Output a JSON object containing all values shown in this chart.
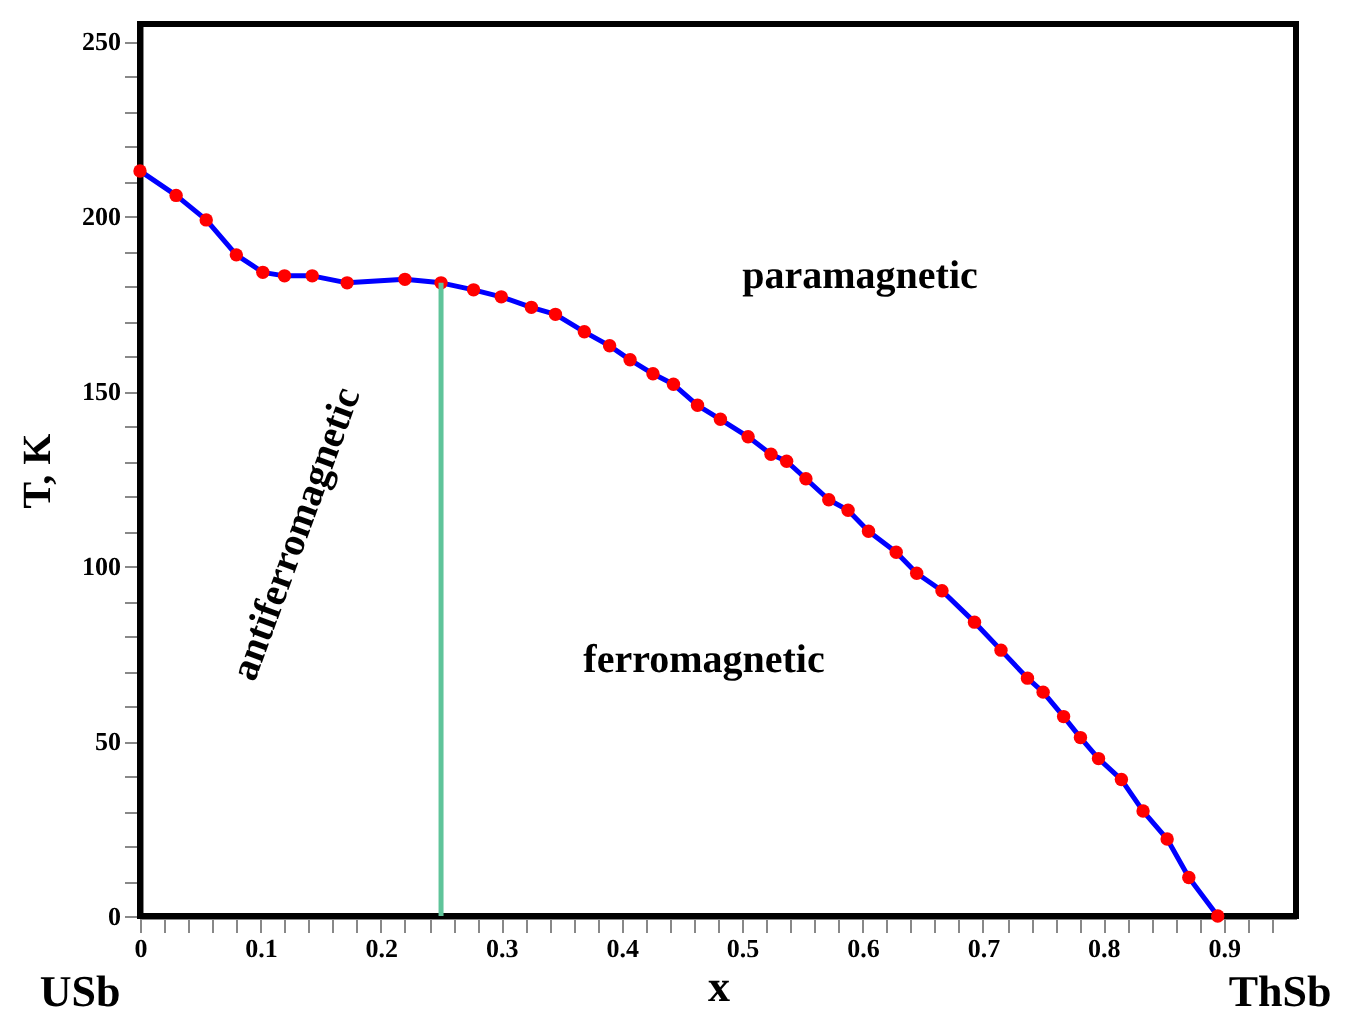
{
  "chart_data": {
    "type": "line",
    "xlabel": "x",
    "ylabel": "T, K",
    "series": [
      {
        "color": "#0000ff",
        "marker": "circle",
        "colors": [
          "#ff0000",
          "#ff0000",
          "#ff0000",
          "#ff0000",
          "#ff0000",
          "#ff0000",
          "#ff0000",
          "#ff0000",
          "#ff0000",
          "#ff0000",
          "#ff0000",
          "#ff0000",
          "#ff0000",
          "#ff0000",
          "#ff0000",
          "#ff0000",
          "#ff0000",
          "#ff0000",
          "#ff0000",
          "#ff0000",
          "#ff0000",
          "#ff0000",
          "#ff0000",
          "#ff0000",
          "#ff0000",
          "#ff0000",
          "#ff0000",
          "#ff0000",
          "#ff0000",
          "#ff0000",
          "#ff0000",
          "#ff0000",
          "#ff0000",
          "#ff0000",
          "#ff0000",
          "#ff0000",
          "#ff0000",
          "#ff0000",
          "#ff0000",
          "#ff0000",
          "#ff0000",
          "#ff0000",
          "#ff0000"
        ],
        "x": [
          0,
          0.03,
          0.055,
          0.08,
          0.102,
          0.12,
          0.143,
          0.172,
          0.22,
          0.25,
          0.277,
          0.3,
          0.325,
          0.345,
          0.369,
          0.39,
          0.407,
          0.426,
          0.443,
          0.463,
          0.482,
          0.505,
          0.524,
          0.537,
          0.553,
          0.572,
          0.588,
          0.605,
          0.628,
          0.645,
          0.666,
          0.693,
          0.715,
          0.737,
          0.75,
          0.767,
          0.781,
          0.796,
          0.815,
          0.833,
          0.853,
          0.871,
          0.895
        ],
        "values": [
          213,
          206,
          199,
          189,
          184,
          183,
          183,
          181,
          182,
          181,
          179,
          177,
          174,
          172,
          167,
          163,
          159,
          155,
          152,
          146,
          142,
          137,
          132,
          130,
          125,
          119,
          116,
          110,
          104,
          98,
          93,
          84,
          76,
          68,
          64,
          57,
          51,
          45,
          39,
          30,
          22,
          11,
          0
        ]
      },
      {
        "type": "line",
        "color": "#5fc49a",
        "marker": "none",
        "x": [
          0.25,
          0.25
        ],
        "values": [
          0,
          181
        ]
      }
    ],
    "xlim": [
      0,
      0.96
    ],
    "ylim": [
      0,
      255
    ],
    "xticks": [
      0,
      {
        "value": 0.02,
        "label": null
      },
      {
        "value": 0.04,
        "label": null
      },
      {
        "value": 0.06,
        "label": null
      },
      {
        "value": 0.08,
        "label": null
      },
      0.1,
      {
        "value": 0.12,
        "label": null
      },
      {
        "value": 0.14,
        "label": null
      },
      {
        "value": 0.16,
        "label": null
      },
      {
        "value": 0.18,
        "label": null
      },
      0.2,
      {
        "value": 0.22,
        "label": null
      },
      {
        "value": 0.24,
        "label": null
      },
      {
        "value": 0.26,
        "label": null
      },
      {
        "value": 0.28,
        "label": null
      },
      0.3,
      {
        "value": 0.32,
        "label": null
      },
      {
        "value": 0.34,
        "label": null
      },
      {
        "value": 0.36,
        "label": null
      },
      {
        "value": 0.38,
        "label": null
      },
      0.4,
      {
        "value": 0.42,
        "label": null
      },
      {
        "value": 0.44,
        "label": null
      },
      {
        "value": 0.46,
        "label": null
      },
      {
        "value": 0.48,
        "label": null
      },
      0.5,
      {
        "value": 0.52,
        "label": null
      },
      {
        "value": 0.54,
        "label": null
      },
      {
        "value": 0.56,
        "label": null
      },
      {
        "value": 0.58,
        "label": null
      },
      0.6,
      {
        "value": 0.62,
        "label": null
      },
      {
        "value": 0.64,
        "label": null
      },
      {
        "value": 0.66,
        "label": null
      },
      {
        "value": 0.68,
        "label": null
      },
      0.7,
      {
        "value": 0.72,
        "label": null
      },
      {
        "value": 0.74,
        "label": null
      },
      {
        "value": 0.76,
        "label": null
      },
      {
        "value": 0.78,
        "label": null
      },
      0.8,
      {
        "value": 0.82,
        "label": null
      },
      {
        "value": 0.84,
        "label": null
      },
      {
        "value": 0.86,
        "label": null
      },
      {
        "value": 0.88,
        "label": null
      },
      0.9,
      {
        "value": 0.92,
        "label": null
      },
      {
        "value": 0.94,
        "label": null
      }
    ],
    "yticks": [
      0,
      {
        "value": 10,
        "label": null
      },
      {
        "value": 20,
        "label": null
      },
      {
        "value": 30,
        "label": null
      },
      {
        "value": 40,
        "label": null
      },
      50,
      {
        "value": 60,
        "label": null
      },
      {
        "value": 70,
        "label": null
      },
      {
        "value": 80,
        "label": null
      },
      {
        "value": 90,
        "label": null
      },
      100,
      {
        "value": 110,
        "label": null
      },
      {
        "value": 120,
        "label": null
      },
      {
        "value": 130,
        "label": null
      },
      {
        "value": 140,
        "label": null
      },
      150,
      {
        "value": 160,
        "label": null
      },
      {
        "value": 170,
        "label": null
      },
      {
        "value": 180,
        "label": null
      },
      {
        "value": 190,
        "label": null
      },
      200,
      {
        "value": 210,
        "label": null
      },
      {
        "value": 220,
        "label": null
      },
      {
        "value": 230,
        "label": null
      },
      {
        "value": 240,
        "label": null
      },
      250
    ],
    "annotations": [
      "paramagnetic",
      "ferromagnetic",
      "antiferromagnetic",
      "USb",
      "ThSb"
    ]
  }
}
